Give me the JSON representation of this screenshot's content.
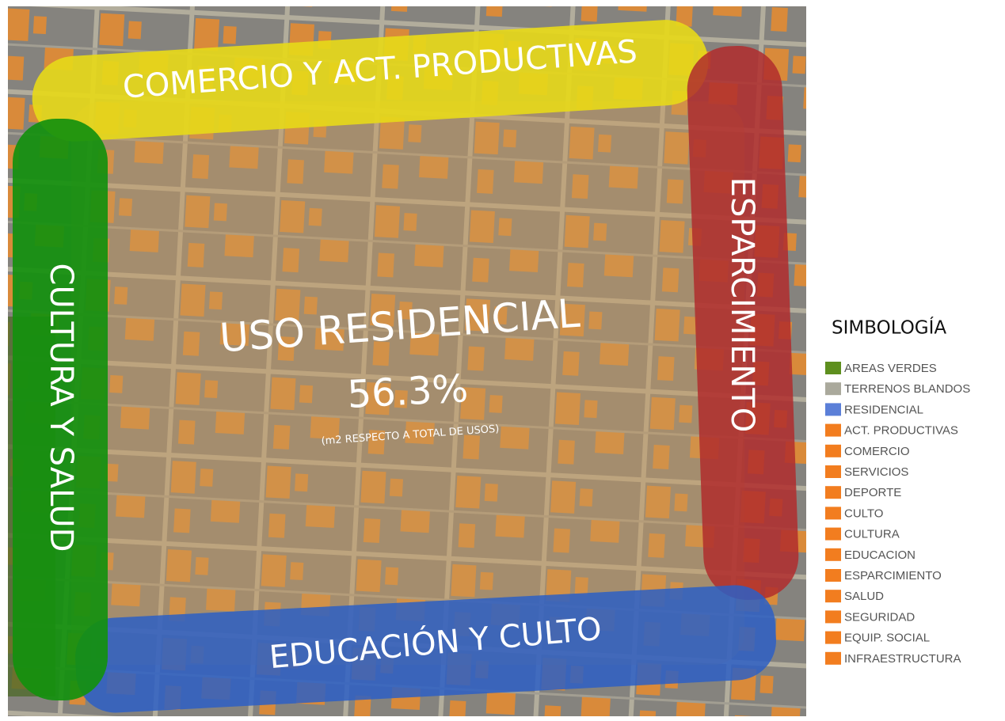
{
  "center": {
    "title": "USO RESIDENCIAL",
    "percent": "56.3%",
    "note": "(m2 RESPECTO A TOTAL DE USOS)"
  },
  "bands": {
    "top": "COMERCIO Y ACT. PRODUCTIVAS",
    "right": "ESPARCIMIENTO",
    "bottom": "EDUCACIÓN Y CULTO",
    "left": "CULTURA Y SALUD"
  },
  "legend": {
    "title": "SIMBOLOGÍA",
    "items": [
      {
        "label": "AREAS VERDES",
        "color": "#5e8f1e"
      },
      {
        "label": "TERRENOS BLANDOS",
        "color": "#aaa99c"
      },
      {
        "label": "RESIDENCIAL",
        "color": "#5b7fd8"
      },
      {
        "label": "ACT. PRODUCTIVAS",
        "color": "#f27d1f"
      },
      {
        "label": "COMERCIO",
        "color": "#f27d1f"
      },
      {
        "label": "SERVICIOS",
        "color": "#f27d1f"
      },
      {
        "label": "DEPORTE",
        "color": "#f27d1f"
      },
      {
        "label": "CULTO",
        "color": "#f27d1f"
      },
      {
        "label": "CULTURA",
        "color": "#f27d1f"
      },
      {
        "label": "EDUCACION",
        "color": "#f27d1f"
      },
      {
        "label": "ESPARCIMIENTO",
        "color": "#f27d1f"
      },
      {
        "label": "SALUD",
        "color": "#f27d1f"
      },
      {
        "label": "SEGURIDAD",
        "color": "#f27d1f"
      },
      {
        "label": "EQUIP. SOCIAL",
        "color": "#f27d1f"
      },
      {
        "label": "INFRAESTRUCTURA",
        "color": "#f27d1f"
      }
    ]
  }
}
